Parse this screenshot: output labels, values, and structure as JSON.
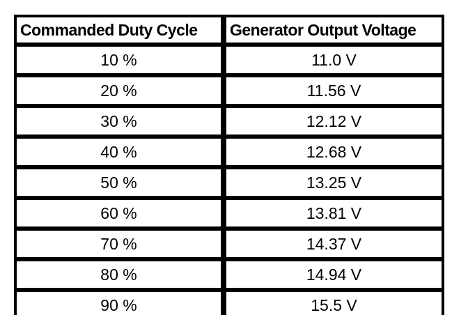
{
  "table": {
    "headers": {
      "duty": "Commanded Duty Cycle",
      "voltage": "Generator Output Voltage"
    },
    "rows": [
      {
        "duty": "10 %",
        "voltage": "11.0 V"
      },
      {
        "duty": "20 %",
        "voltage": "11.56 V"
      },
      {
        "duty": "30 %",
        "voltage": "12.12 V"
      },
      {
        "duty": "40 %",
        "voltage": "12.68 V"
      },
      {
        "duty": "50 %",
        "voltage": "13.25 V"
      },
      {
        "duty": "60 %",
        "voltage": "13.81 V"
      },
      {
        "duty": "70 %",
        "voltage": "14.37 V"
      },
      {
        "duty": "80 %",
        "voltage": "14.94 V"
      },
      {
        "duty": "90 %",
        "voltage": "15.5 V"
      }
    ]
  },
  "chart_data": {
    "type": "table",
    "columns": [
      "Commanded Duty Cycle",
      "Generator Output Voltage"
    ],
    "rows": [
      [
        "10 %",
        "11.0 V"
      ],
      [
        "20 %",
        "11.56 V"
      ],
      [
        "30 %",
        "12.12 V"
      ],
      [
        "40 %",
        "12.68 V"
      ],
      [
        "50 %",
        "13.25 V"
      ],
      [
        "60 %",
        "13.81 V"
      ],
      [
        "70 %",
        "14.37 V"
      ],
      [
        "80 %",
        "14.94 V"
      ],
      [
        "90 %",
        "15.5 V"
      ]
    ],
    "duty_cycle_percent": [
      10,
      20,
      30,
      40,
      50,
      60,
      70,
      80,
      90
    ],
    "generator_output_voltage_v": [
      11.0,
      11.56,
      12.12,
      12.68,
      13.25,
      13.81,
      14.37,
      14.94,
      15.5
    ]
  },
  "colors": {
    "border": "#000000",
    "background": "#ffffff",
    "text": "#000000"
  }
}
